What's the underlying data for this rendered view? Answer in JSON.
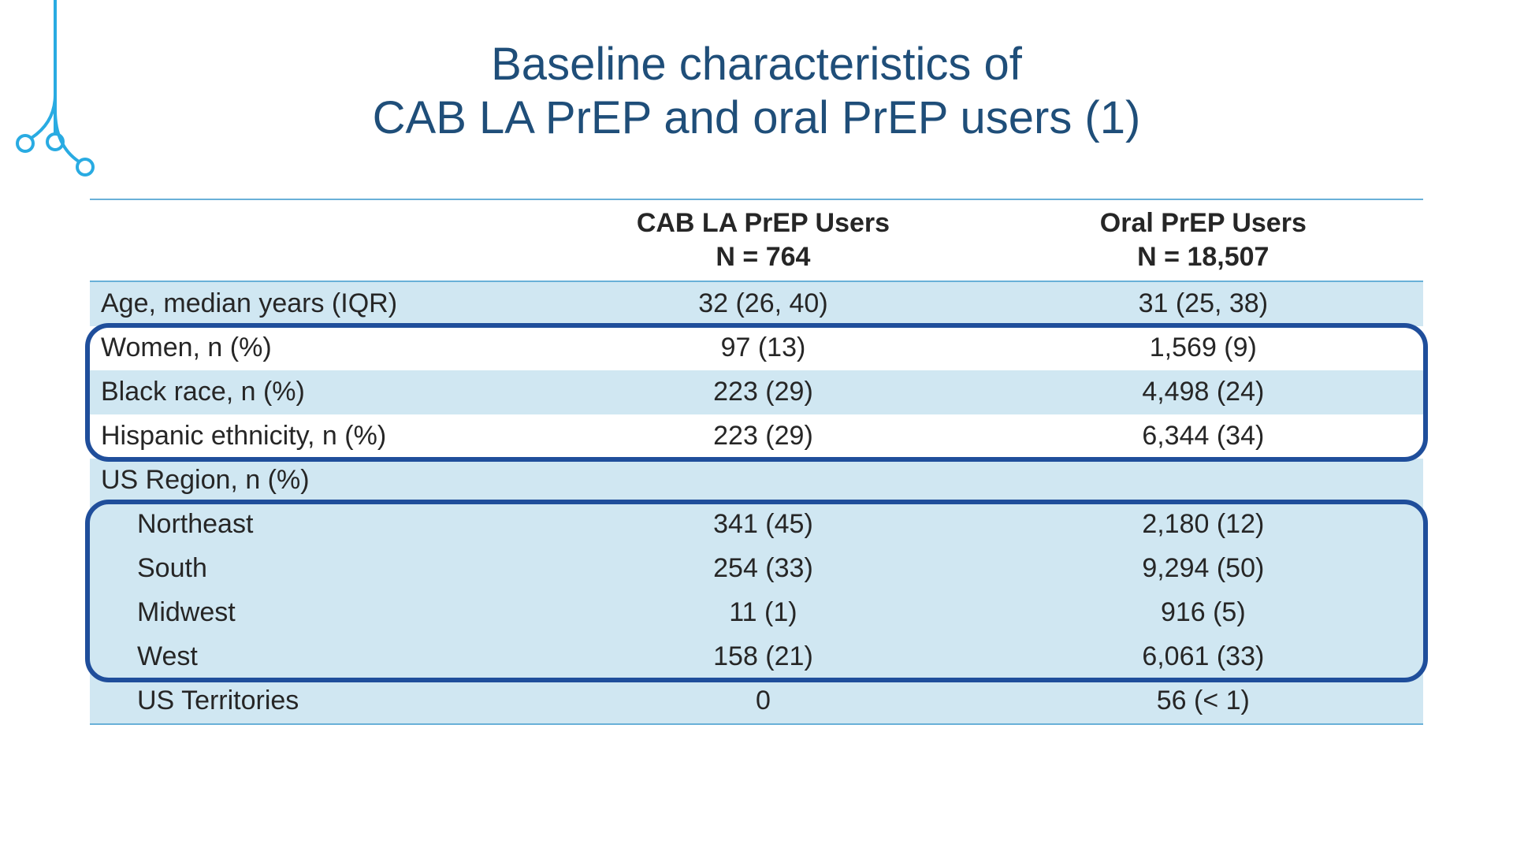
{
  "title": {
    "line1": "Baseline characteristics of",
    "line2": "CAB LA PrEP and oral PrEP users (1)",
    "color": "#1f4e79",
    "fontsize": 58
  },
  "decoration": {
    "stroke": "#29abe2",
    "stroke_width": 4
  },
  "table": {
    "border_color": "#69b0d8",
    "shade_color": "#d0e7f2",
    "font_size": 34,
    "columns": [
      {
        "label_line1": "",
        "label_line2": "",
        "align": "left",
        "width_pct": 34
      },
      {
        "label_line1": "CAB LA PrEP Users",
        "label_line2": "N = 764",
        "align": "center",
        "width_pct": 33
      },
      {
        "label_line1": "Oral PrEP Users",
        "label_line2": "N = 18,507",
        "align": "center",
        "width_pct": 33
      }
    ],
    "rows": [
      {
        "label": "Age, median years (IQR)",
        "c1": "32 (26, 40)",
        "c2": "31 (25, 38)",
        "shaded": true,
        "indent": false
      },
      {
        "label": "Women, n (%)",
        "c1": "97 (13)",
        "c2": "1,569 (9)",
        "shaded": false,
        "indent": false
      },
      {
        "label": "Black race, n (%)",
        "c1": "223 (29)",
        "c2": "4,498 (24)",
        "shaded": true,
        "indent": false
      },
      {
        "label": "Hispanic ethnicity, n (%)",
        "c1": "223 (29)",
        "c2": "6,344 (34)",
        "shaded": false,
        "indent": false
      },
      {
        "label": "US Region, n (%)",
        "c1": "",
        "c2": "",
        "shaded": true,
        "indent": false
      },
      {
        "label": "Northeast",
        "c1": "341 (45)",
        "c2": "2,180 (12)",
        "shaded": true,
        "indent": true
      },
      {
        "label": "South",
        "c1": "254 (33)",
        "c2": "9,294 (50)",
        "shaded": true,
        "indent": true
      },
      {
        "label": "Midwest",
        "c1": "11 (1)",
        "c2": "916 (5)",
        "shaded": true,
        "indent": true
      },
      {
        "label": "West",
        "c1": "158 (21)",
        "c2": "6,061 (33)",
        "shaded": true,
        "indent": true
      },
      {
        "label": "US Territories",
        "c1": "0",
        "c2": "56 (< 1)",
        "shaded": true,
        "indent": true
      }
    ],
    "highlights": [
      {
        "from_row": 1,
        "to_row": 3,
        "border_color": "#1f4e9b",
        "border_width": 6,
        "radius": 30
      },
      {
        "from_row": 5,
        "to_row": 8,
        "border_color": "#1f4e9b",
        "border_width": 6,
        "radius": 30
      }
    ]
  }
}
